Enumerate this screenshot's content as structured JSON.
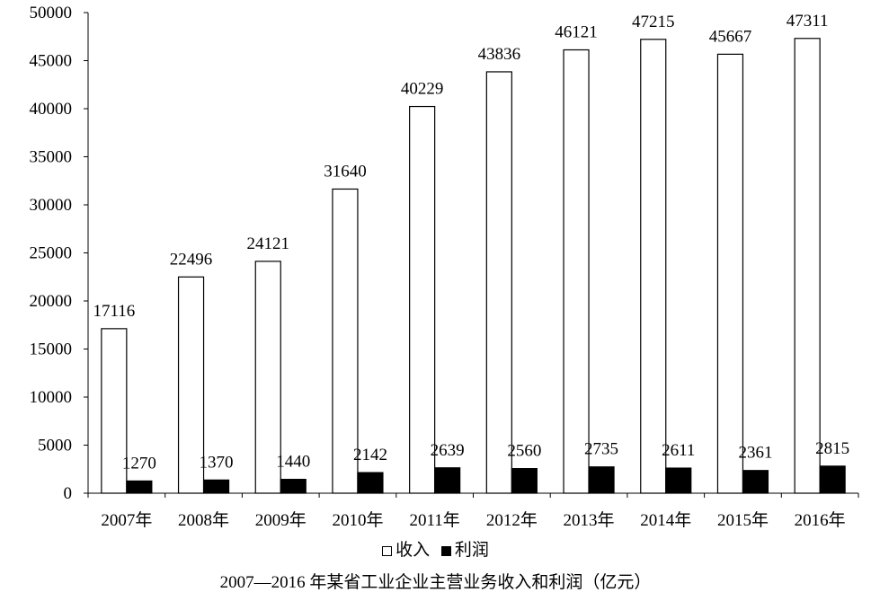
{
  "chart_data": {
    "type": "bar",
    "title": "2007—2016 年某省工业企业主营业务收入和利润（亿元）",
    "categories": [
      "2007年",
      "2008年",
      "2009年",
      "2010年",
      "2011年",
      "2012年",
      "2013年",
      "2014年",
      "2015年",
      "2016年"
    ],
    "series": [
      {
        "name": "收入",
        "color": "#ffffff",
        "values": [
          17116,
          22496,
          24121,
          31640,
          40229,
          43836,
          46121,
          47215,
          45667,
          47311
        ]
      },
      {
        "name": "利润",
        "color": "#000000",
        "values": [
          1270,
          1370,
          1440,
          2142,
          2639,
          2560,
          2735,
          2611,
          2361,
          2815
        ]
      }
    ],
    "ylim": [
      0,
      50000
    ],
    "yticks": [
      0,
      5000,
      10000,
      15000,
      20000,
      25000,
      30000,
      35000,
      40000,
      45000,
      50000
    ],
    "xlabel": "",
    "ylabel": "",
    "grid": false,
    "legend_position": "bottom-center"
  }
}
